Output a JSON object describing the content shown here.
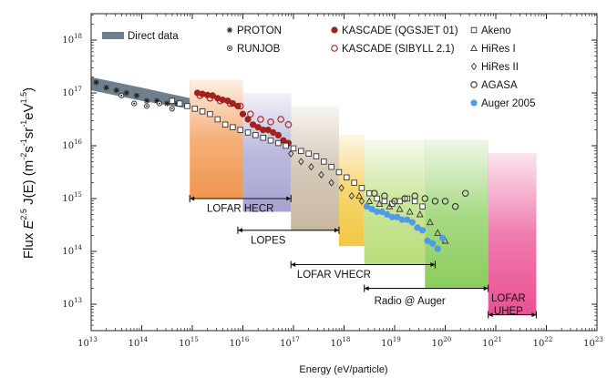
{
  "chart_data": {
    "type": "scatter",
    "title": "",
    "xlabel": "Energy (eV/particle)",
    "ylabel": "Flux E^2.5 J(E) (m^-2 s^-1 sr^-1 eV^1.5)",
    "ylabel_parts": {
      "pre": "Flux ",
      "e": "E",
      "e_exp": "2.5",
      "je": " J(E) (m",
      "m_exp": "-2",
      "s": "s",
      "s_exp": "-1",
      "sr": "sr",
      "sr_exp": "-1",
      "ev": "eV",
      "ev_exp": "1.5",
      "close": ")"
    },
    "x_scale": "log",
    "y_scale": "log",
    "xlim_exp": [
      13,
      23
    ],
    "ylim_exp": [
      12.5,
      18.5
    ],
    "x_ticks": [
      {
        "base": "10",
        "exp": "13"
      },
      {
        "base": "10",
        "exp": "14"
      },
      {
        "base": "10",
        "exp": "15"
      },
      {
        "base": "10",
        "exp": "16"
      },
      {
        "base": "10",
        "exp": "17"
      },
      {
        "base": "10",
        "exp": "18"
      },
      {
        "base": "10",
        "exp": "19"
      },
      {
        "base": "10",
        "exp": "20"
      },
      {
        "base": "10",
        "exp": "21"
      },
      {
        "base": "10",
        "exp": "22"
      },
      {
        "base": "10",
        "exp": "23"
      }
    ],
    "y_ticks": [
      {
        "base": "10",
        "exp": "13"
      },
      {
        "base": "10",
        "exp": "14"
      },
      {
        "base": "10",
        "exp": "15"
      },
      {
        "base": "10",
        "exp": "16"
      },
      {
        "base": "10",
        "exp": "17"
      },
      {
        "base": "10",
        "exp": "18"
      }
    ],
    "legend": [
      {
        "label": "Direct data",
        "marker": "band",
        "color": "#6f7f8c"
      },
      {
        "label": "PROTON",
        "marker": "star",
        "color": "#222222"
      },
      {
        "label": "RUNJOB",
        "marker": "dot-ring",
        "color": "#222222"
      },
      {
        "label": "KASCADE (QGSJET 01)",
        "marker": "filled-circle",
        "color": "#a3201c"
      },
      {
        "label": "KASCADE (SIBYLL 2.1)",
        "marker": "open-circle",
        "color": "#a3201c"
      },
      {
        "label": "Akeno",
        "marker": "open-square",
        "color": "#333333"
      },
      {
        "label": "HiRes I",
        "marker": "open-triangle",
        "color": "#333333"
      },
      {
        "label": "HiRes II",
        "marker": "open-diamond",
        "color": "#333333"
      },
      {
        "label": "AGASA",
        "marker": "open-circle",
        "color": "#333333"
      },
      {
        "label": "Auger 2005",
        "marker": "filled-circle",
        "color": "#4f9be8"
      }
    ],
    "regions": [
      {
        "label": "LOFAR HECR",
        "x_exp": [
          14.95,
          16.0
        ],
        "y_top_exp": 17.25,
        "y_bottom_exp": 15.0,
        "color": "#f08a3a",
        "label_x_exp": 15.95,
        "label_y_exp": 14.75,
        "arrow_x_exp": [
          14.95,
          16.95
        ],
        "arrow_y_exp": 15.0
      },
      {
        "label": "LOPES",
        "x_exp": [
          16.0,
          16.95
        ],
        "y_top_exp": 17.0,
        "y_bottom_exp": 14.75,
        "color": "#9b9acd",
        "label_x_exp": 16.5,
        "label_y_exp": 14.15,
        "arrow_x_exp": [
          15.9,
          17.9
        ],
        "arrow_y_exp": 14.4
      },
      {
        "label": "",
        "x_exp": [
          16.95,
          17.9
        ],
        "y_top_exp": 16.75,
        "y_bottom_exp": 14.4,
        "color": "#c2b098",
        "label_x_exp": 0,
        "label_y_exp": 0,
        "arrow_x_exp": [
          0,
          0
        ],
        "arrow_y_exp": 0
      },
      {
        "label": "",
        "x_exp": [
          17.9,
          18.4
        ],
        "y_top_exp": 16.2,
        "y_bottom_exp": 14.1,
        "color": "#f2c12e",
        "label_x_exp": 0,
        "label_y_exp": 0,
        "arrow_x_exp": [
          0,
          0
        ],
        "arrow_y_exp": 0
      },
      {
        "label": "LOFAR VHECR",
        "x_exp": [
          18.4,
          19.6
        ],
        "y_top_exp": 16.1,
        "y_bottom_exp": 13.75,
        "color": "#b3d96a",
        "label_x_exp": 17.8,
        "label_y_exp": 13.5,
        "arrow_x_exp": [
          16.95,
          19.8
        ],
        "arrow_y_exp": 13.75
      },
      {
        "label": "Radio @ Auger",
        "x_exp": [
          19.6,
          20.85
        ],
        "y_top_exp": 16.1,
        "y_bottom_exp": 13.3,
        "color": "#7ec84a",
        "label_x_exp": 19.3,
        "label_y_exp": 13.0,
        "arrow_x_exp": [
          18.4,
          20.85
        ],
        "arrow_y_exp": 13.3
      },
      {
        "label": "LOFAR UHEP",
        "x_exp": [
          20.85,
          21.8
        ],
        "y_top_exp": 15.85,
        "y_bottom_exp": 12.8,
        "color": "#e83d87",
        "label_x_exp": 21.25,
        "label_y_exp": 13.05,
        "arrow_x_exp": [
          20.85,
          21.8
        ],
        "arrow_y_exp": 12.8
      }
    ],
    "direct_band": [
      {
        "x_exp": 13.0,
        "lo_exp": 17.05,
        "hi_exp": 17.3
      },
      {
        "x_exp": 14.0,
        "lo_exp": 16.85,
        "hi_exp": 17.1
      },
      {
        "x_exp": 14.95,
        "lo_exp": 16.7,
        "hi_exp": 16.9
      }
    ],
    "series": [
      {
        "name": "PROTON",
        "marker": "star",
        "color": "#222222",
        "points": [
          [
            13.1,
            17.2
          ],
          [
            13.3,
            17.1
          ],
          [
            13.5,
            17.05
          ],
          [
            13.7,
            17.0
          ],
          [
            13.9,
            16.95
          ],
          [
            14.1,
            16.85
          ],
          [
            14.3,
            16.85
          ],
          [
            14.5,
            16.8
          ],
          [
            14.7,
            16.8
          ]
        ]
      },
      {
        "name": "RUNJOB",
        "marker": "dot-ring",
        "color": "#222222",
        "points": [
          [
            13.6,
            16.95
          ],
          [
            13.85,
            16.8
          ],
          [
            14.1,
            16.75
          ],
          [
            14.35,
            16.8
          ],
          [
            14.6,
            16.7
          ]
        ]
      },
      {
        "name": "KASCADE (QGSJET 01)",
        "marker": "filled-circle",
        "color": "#a3201c",
        "points": [
          [
            15.1,
            17.0
          ],
          [
            15.2,
            16.98
          ],
          [
            15.3,
            16.96
          ],
          [
            15.4,
            16.95
          ],
          [
            15.5,
            16.9
          ],
          [
            15.6,
            16.87
          ],
          [
            15.7,
            16.85
          ],
          [
            15.8,
            16.8
          ],
          [
            15.9,
            16.75
          ],
          [
            16.0,
            16.6
          ],
          [
            16.1,
            16.5
          ],
          [
            16.2,
            16.4
          ],
          [
            16.3,
            16.35
          ],
          [
            16.4,
            16.3
          ],
          [
            16.5,
            16.3
          ],
          [
            16.6,
            16.25
          ],
          [
            16.7,
            16.2
          ],
          [
            16.8,
            16.1
          ],
          [
            16.9,
            16.05
          ]
        ]
      },
      {
        "name": "KASCADE (SIBYLL 2.1)",
        "marker": "open-circle",
        "color": "#a3201c",
        "points": [
          [
            15.15,
            16.95
          ],
          [
            15.35,
            16.9
          ],
          [
            15.55,
            16.85
          ],
          [
            15.75,
            16.8
          ],
          [
            15.95,
            16.75
          ],
          [
            16.15,
            16.6
          ],
          [
            16.35,
            16.5
          ],
          [
            16.55,
            16.45
          ],
          [
            16.75,
            16.5
          ],
          [
            16.9,
            16.4
          ]
        ]
      },
      {
        "name": "Akeno",
        "marker": "open-square",
        "color": "#333333",
        "points": [
          [
            14.6,
            16.85
          ],
          [
            14.75,
            16.8
          ],
          [
            14.9,
            16.75
          ],
          [
            15.05,
            16.7
          ],
          [
            15.2,
            16.65
          ],
          [
            15.35,
            16.6
          ],
          [
            15.5,
            16.5
          ],
          [
            15.65,
            16.4
          ],
          [
            15.8,
            16.35
          ],
          [
            15.95,
            16.3
          ],
          [
            16.1,
            16.25
          ],
          [
            16.25,
            16.2
          ],
          [
            16.4,
            16.15
          ],
          [
            16.55,
            16.1
          ],
          [
            16.7,
            16.05
          ],
          [
            16.85,
            16.0
          ],
          [
            17.0,
            15.95
          ],
          [
            17.15,
            15.9
          ],
          [
            17.3,
            15.85
          ],
          [
            17.45,
            15.8
          ],
          [
            17.6,
            15.7
          ],
          [
            17.75,
            15.6
          ],
          [
            17.9,
            15.5
          ],
          [
            18.05,
            15.4
          ],
          [
            18.2,
            15.3
          ],
          [
            18.35,
            15.2
          ],
          [
            18.5,
            15.1
          ],
          [
            18.65,
            15.0
          ],
          [
            18.8,
            14.95
          ],
          [
            18.95,
            14.9
          ],
          [
            19.1,
            14.95
          ],
          [
            19.25,
            15.0
          ],
          [
            19.4,
            14.95
          ],
          [
            19.55,
            14.85
          ]
        ]
      },
      {
        "name": "HiRes I",
        "marker": "open-triangle",
        "color": "#333333",
        "points": [
          [
            18.3,
            15.05
          ],
          [
            18.5,
            14.95
          ],
          [
            18.7,
            14.9
          ],
          [
            18.9,
            14.85
          ],
          [
            19.1,
            14.8
          ],
          [
            19.3,
            14.75
          ],
          [
            19.5,
            14.7
          ],
          [
            19.7,
            14.55
          ],
          [
            19.85,
            14.35
          ],
          [
            20.0,
            14.2
          ]
        ]
      },
      {
        "name": "HiRes II",
        "marker": "open-diamond",
        "color": "#333333",
        "points": [
          [
            16.95,
            15.85
          ],
          [
            17.15,
            15.7
          ],
          [
            17.35,
            15.6
          ],
          [
            17.55,
            15.45
          ],
          [
            17.75,
            15.3
          ],
          [
            17.95,
            15.2
          ],
          [
            18.15,
            15.05
          ],
          [
            18.35,
            14.95
          ]
        ]
      },
      {
        "name": "AGASA",
        "marker": "open-circle",
        "color": "#333333",
        "points": [
          [
            18.6,
            15.1
          ],
          [
            18.8,
            15.05
          ],
          [
            19.0,
            14.95
          ],
          [
            19.2,
            15.0
          ],
          [
            19.4,
            15.05
          ],
          [
            19.6,
            15.0
          ],
          [
            19.8,
            14.95
          ],
          [
            20.0,
            14.95
          ],
          [
            20.2,
            14.85
          ],
          [
            20.4,
            15.1
          ]
        ]
      },
      {
        "name": "Auger 2005",
        "marker": "filled-circle",
        "color": "#4f9be8",
        "points": [
          [
            18.45,
            14.85
          ],
          [
            18.55,
            14.8
          ],
          [
            18.65,
            14.75
          ],
          [
            18.75,
            14.75
          ],
          [
            18.85,
            14.7
          ],
          [
            18.95,
            14.65
          ],
          [
            19.05,
            14.65
          ],
          [
            19.15,
            14.6
          ],
          [
            19.25,
            14.6
          ],
          [
            19.35,
            14.55
          ],
          [
            19.45,
            14.45
          ],
          [
            19.55,
            14.4
          ],
          [
            19.65,
            14.2
          ],
          [
            19.75,
            14.15
          ],
          [
            19.85,
            14.05
          ],
          [
            19.95,
            14.25
          ]
        ]
      }
    ],
    "grid": false,
    "legend_position": "top"
  }
}
